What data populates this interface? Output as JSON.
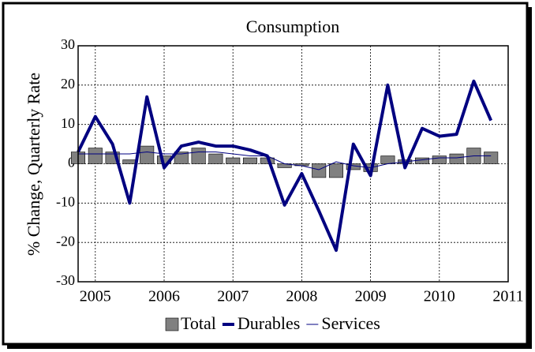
{
  "chart_data": {
    "type": "bar-line",
    "title": "Consumption",
    "ylabel": "% Change, Quarterly Rate",
    "x": [
      2004.75,
      2005,
      2005.25,
      2005.5,
      2005.75,
      2006,
      2006.25,
      2006.5,
      2006.75,
      2007,
      2007.25,
      2007.5,
      2007.75,
      2008,
      2008.25,
      2008.5,
      2008.75,
      2009,
      2009.25,
      2009.5,
      2009.75,
      2010,
      2010.25,
      2010.5,
      2010.75
    ],
    "series": [
      {
        "name": "Total",
        "type": "bar",
        "color": "#808080",
        "legend_color": "#808080",
        "values": [
          3,
          4,
          3,
          1,
          4.5,
          2,
          3,
          4,
          2.5,
          1.5,
          1.5,
          1.5,
          -1,
          -0.5,
          -3.5,
          -3.5,
          -1.5,
          -2,
          2,
          1,
          1.5,
          2,
          2.5,
          4,
          3
        ]
      },
      {
        "name": "Durables",
        "type": "line",
        "color": "#000080",
        "width": 4,
        "values": [
          3,
          12,
          5,
          -10,
          17,
          -1,
          4.5,
          5.5,
          4.5,
          4.5,
          3.5,
          2,
          -10.5,
          -2.5,
          -12,
          -22,
          5,
          -3,
          20,
          -1,
          9,
          7,
          7.5,
          21,
          11
        ]
      },
      {
        "name": "Services",
        "type": "line",
        "color": "#000080",
        "width": 1,
        "values": [
          2.5,
          2.5,
          2.5,
          2.5,
          3,
          2.5,
          2.5,
          3,
          3,
          2.5,
          2,
          2,
          0,
          -0.5,
          -1.5,
          0.5,
          -0.5,
          -1,
          0,
          0.5,
          1,
          1.5,
          1.5,
          2,
          2
        ]
      }
    ],
    "xlim": [
      2004.75,
      2011
    ],
    "xticks": [
      2005,
      2006,
      2007,
      2008,
      2009,
      2010,
      2011
    ],
    "ylim": [
      -30,
      30
    ],
    "yticks": [
      -30,
      -20,
      -10,
      0,
      10,
      20,
      30
    ],
    "grid": true
  }
}
